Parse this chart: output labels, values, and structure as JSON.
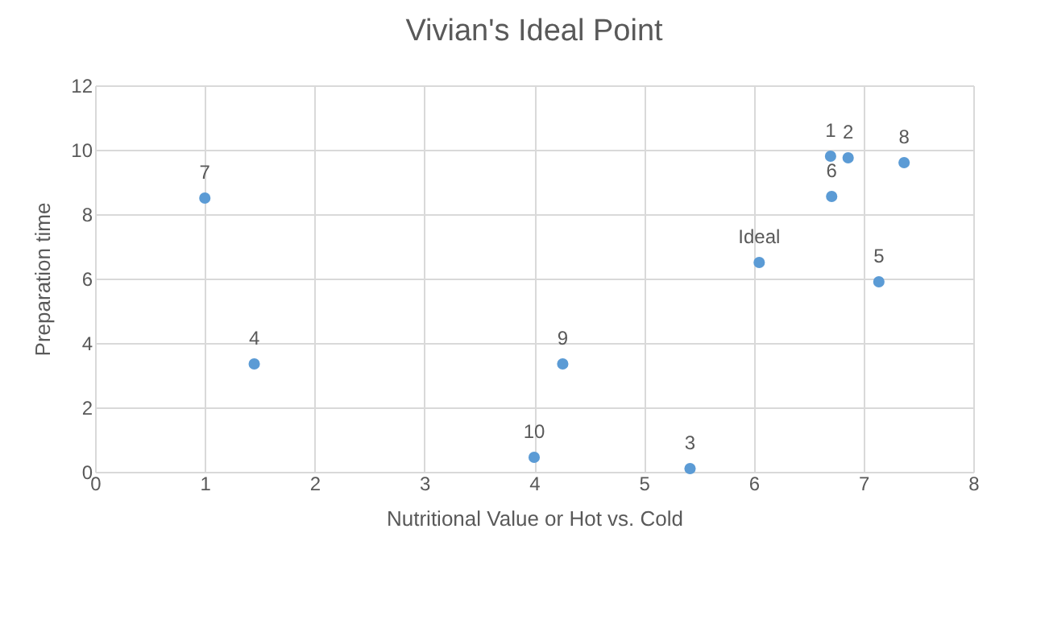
{
  "chart_data": {
    "type": "scatter",
    "title": "Vivian's Ideal Point",
    "xlabel": "Nutritional Value or Hot vs. Cold",
    "ylabel": "Preparation time",
    "x": [
      1,
      1.45,
      4.0,
      4.26,
      5.42,
      6.05,
      6.7,
      6.86,
      6.71,
      7.37,
      7.14
    ],
    "series": [
      {
        "color": "#5b9bd5",
        "values": [
          8.5,
          3.35,
          0.45,
          3.35,
          0.1,
          6.5,
          9.8,
          9.75,
          8.55,
          9.6,
          5.9
        ]
      }
    ],
    "annotations": [
      {
        "text": "7",
        "x": 1,
        "y": 8.5
      },
      {
        "text": "4",
        "x": 1.45,
        "y": 3.35
      },
      {
        "text": "10",
        "x": 4.0,
        "y": 0.45
      },
      {
        "text": "9",
        "x": 4.26,
        "y": 3.35
      },
      {
        "text": "3",
        "x": 5.42,
        "y": 0.1
      },
      {
        "text": "Ideal",
        "x": 6.05,
        "y": 6.5
      },
      {
        "text": "1",
        "x": 6.7,
        "y": 9.8
      },
      {
        "text": "2",
        "x": 6.86,
        "y": 9.75
      },
      {
        "text": "6",
        "x": 6.71,
        "y": 8.55
      },
      {
        "text": "8",
        "x": 7.37,
        "y": 9.6
      },
      {
        "text": "5",
        "x": 7.14,
        "y": 5.9
      }
    ],
    "xlim": [
      0,
      8
    ],
    "xticks": [
      0,
      1,
      2,
      3,
      4,
      5,
      6,
      7,
      8
    ],
    "ylim": [
      0,
      12
    ],
    "yticks": [
      0,
      2,
      4,
      6,
      8,
      10,
      12
    ],
    "grid": true,
    "marker": "circle"
  }
}
